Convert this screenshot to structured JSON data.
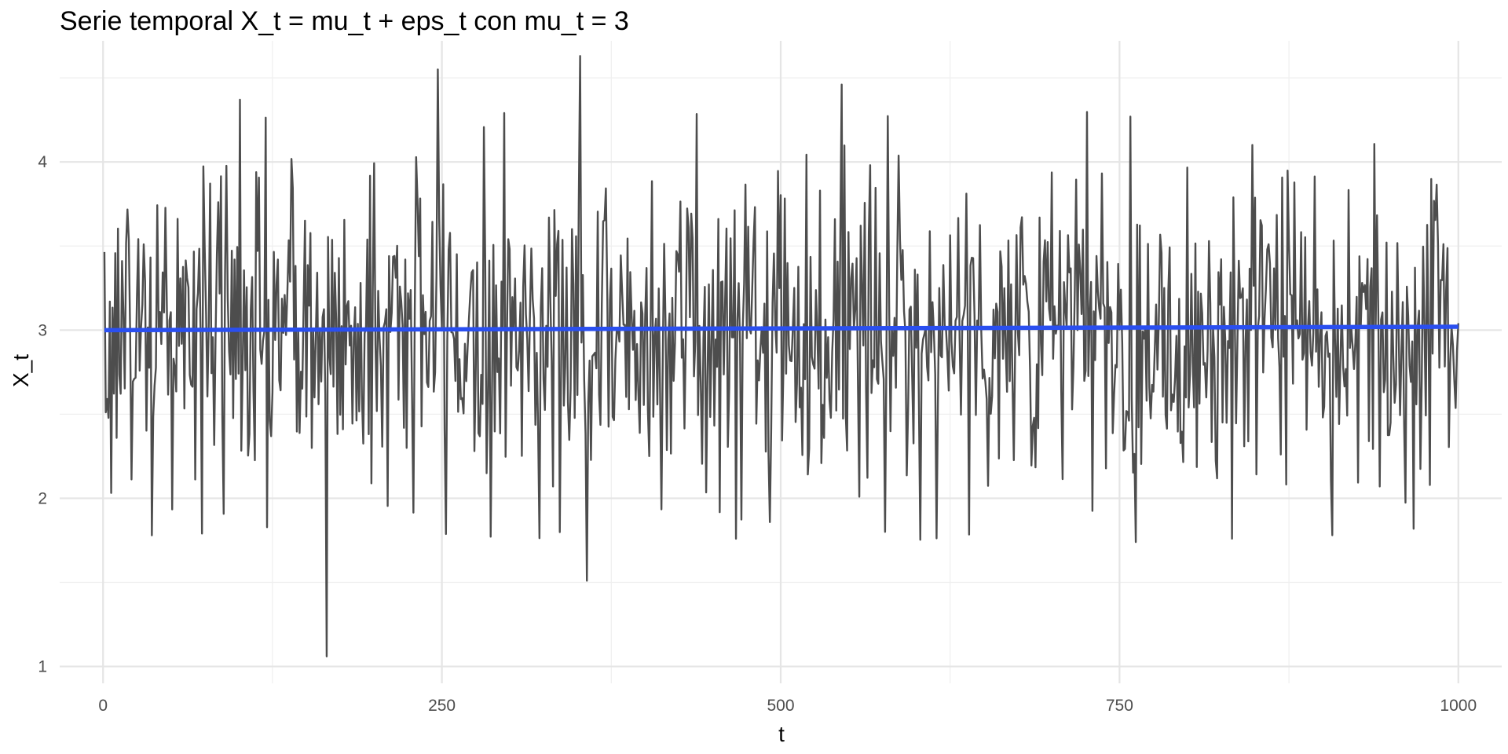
{
  "chart_data": {
    "type": "line",
    "title": "Serie temporal X_t = mu_t + eps_t con mu_t = 3",
    "xlabel": "t",
    "ylabel": "X_t",
    "xlim": [
      -32,
      1032
    ],
    "ylim": [
      0.9,
      4.72
    ],
    "x_ticks": [
      0,
      250,
      500,
      750,
      1000
    ],
    "x_tick_labels": [
      "0",
      "250",
      "500",
      "750",
      "1000"
    ],
    "y_ticks": [
      1,
      2,
      3,
      4
    ],
    "y_tick_labels": [
      "1",
      "2",
      "3",
      "4"
    ],
    "grid": true,
    "legend": "none",
    "series": [
      {
        "color": "#4d4d4d",
        "x_start": 1,
        "x_step": 1,
        "n": 1000,
        "mean": 3.0,
        "sd": 0.5,
        "extremes": [
          {
            "x": 165,
            "y": 1.06
          },
          {
            "x": 352,
            "y": 4.63
          },
          {
            "x": 357,
            "y": 1.51
          },
          {
            "x": 247,
            "y": 4.55
          },
          {
            "x": 545,
            "y": 4.46
          },
          {
            "x": 101,
            "y": 4.37
          },
          {
            "x": 36,
            "y": 1.78
          },
          {
            "x": 762,
            "y": 1.74
          }
        ]
      },
      {
        "color": "#2a4ff0",
        "x": [
          1,
          1000
        ],
        "y": [
          3.0,
          3.02
        ]
      }
    ]
  }
}
